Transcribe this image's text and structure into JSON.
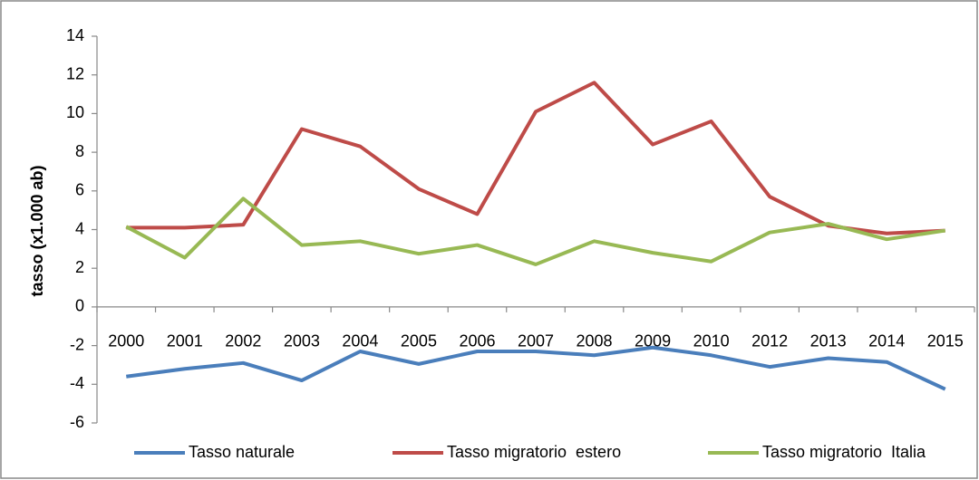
{
  "chart_data": {
    "type": "line",
    "y_axis_label": "tasso (x1.000 ab)",
    "categories": [
      "2000",
      "2001",
      "2002",
      "2003",
      "2004",
      "2005",
      "2006",
      "2007",
      "2008",
      "2009",
      "2010",
      "2012",
      "2013",
      "2014",
      "2015"
    ],
    "series": [
      {
        "name": "Tasso naturale",
        "color": "#4a7ebb",
        "values": [
          -3.6,
          -3.2,
          -2.9,
          -3.8,
          -2.3,
          -2.95,
          -2.3,
          -2.3,
          -2.5,
          -2.1,
          -2.5,
          -3.1,
          -2.65,
          -2.85,
          -4.25
        ]
      },
      {
        "name": "Tasso migratorio  estero",
        "color": "#be4b48",
        "values": [
          4.1,
          4.1,
          4.25,
          9.2,
          8.3,
          6.1,
          4.8,
          10.1,
          11.6,
          8.4,
          9.6,
          5.7,
          4.2,
          3.8,
          3.95
        ]
      },
      {
        "name": "Tasso migratorio  Italia",
        "color": "#98b954",
        "values": [
          4.15,
          2.55,
          5.6,
          3.2,
          3.4,
          2.75,
          3.2,
          2.2,
          3.4,
          2.8,
          2.35,
          3.85,
          4.3,
          3.5,
          3.95
        ]
      }
    ],
    "ylim": [
      -6,
      14
    ],
    "yticks": [
      -6,
      -4,
      -2,
      0,
      2,
      4,
      6,
      8,
      10,
      12,
      14
    ],
    "legend": "bottom"
  }
}
